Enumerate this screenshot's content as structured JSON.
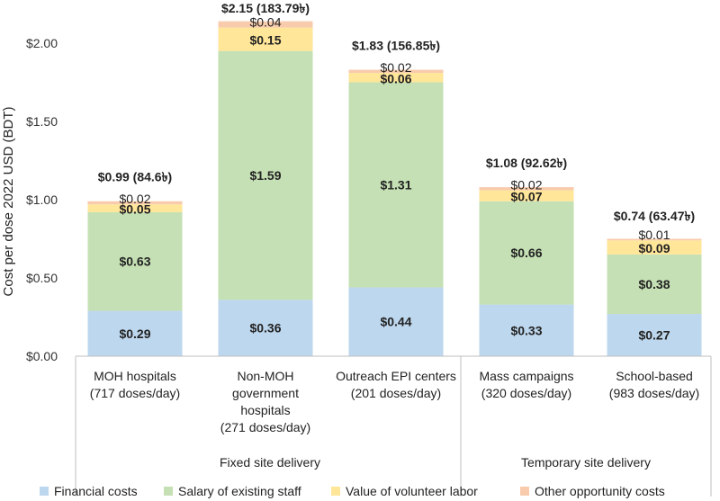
{
  "chart_data": {
    "type": "stacked-bar",
    "ylabel": "Cost per dose 2022 USD (BDT)",
    "ylim": [
      0,
      2.0
    ],
    "yticks": [
      "$0.00",
      "$0.50",
      "$1.00",
      "$1.50",
      "$2.00"
    ],
    "ytick_values": [
      0,
      0.5,
      1.0,
      1.5,
      2.0
    ],
    "categories": [
      [
        "MOH hospitals",
        "(717 doses/day)"
      ],
      [
        "Non-MOH",
        "government",
        "hospitals",
        "(271 doses/day)"
      ],
      [
        "Outreach EPI centers",
        "(201 doses/day)"
      ],
      [
        "Mass campaigns",
        "(320 doses/day)"
      ],
      [
        "School-based",
        "(983 doses/day)"
      ]
    ],
    "groups": [
      {
        "label": "Fixed site delivery",
        "from": 0,
        "to": 2
      },
      {
        "label": "Temporary site delivery",
        "from": 3,
        "to": 4
      }
    ],
    "series": [
      {
        "name": "Financial costs",
        "color": "#bdd7ee",
        "values": [
          0.29,
          0.36,
          0.44,
          0.33,
          0.27
        ],
        "labels": [
          "$0.29",
          "$0.36",
          "$0.44",
          "$0.33",
          "$0.27"
        ],
        "bold": true
      },
      {
        "name": "Salary of existing staff",
        "color": "#c5e0b4",
        "values": [
          0.63,
          1.59,
          1.31,
          0.66,
          0.38
        ],
        "labels": [
          "$0.63",
          "$1.59",
          "$1.31",
          "$0.66",
          "$0.38"
        ],
        "bold": true
      },
      {
        "name": "Value of volunteer labor",
        "color": "#ffe699",
        "values": [
          0.05,
          0.15,
          0.06,
          0.07,
          0.09
        ],
        "labels": [
          "$0.05",
          "$0.15",
          "$0.06",
          "$0.07",
          "$0.09"
        ],
        "bold": true
      },
      {
        "name": "Other opportunity costs",
        "color": "#f8cbad",
        "values": [
          0.02,
          0.04,
          0.02,
          0.02,
          0.01
        ],
        "labels": [
          "$0.02",
          "$0.04",
          "$0.02",
          "$0.02",
          "$0.01"
        ],
        "bold": false
      }
    ],
    "totals": [
      "$0.99 (84.6৳)",
      "$2.15 (183.79৳)",
      "$1.83 (156.85৳)",
      "$1.08 (92.62৳)",
      "$0.74 (63.47৳)"
    ],
    "total_values": [
      0.99,
      2.15,
      1.83,
      1.08,
      0.74
    ]
  }
}
